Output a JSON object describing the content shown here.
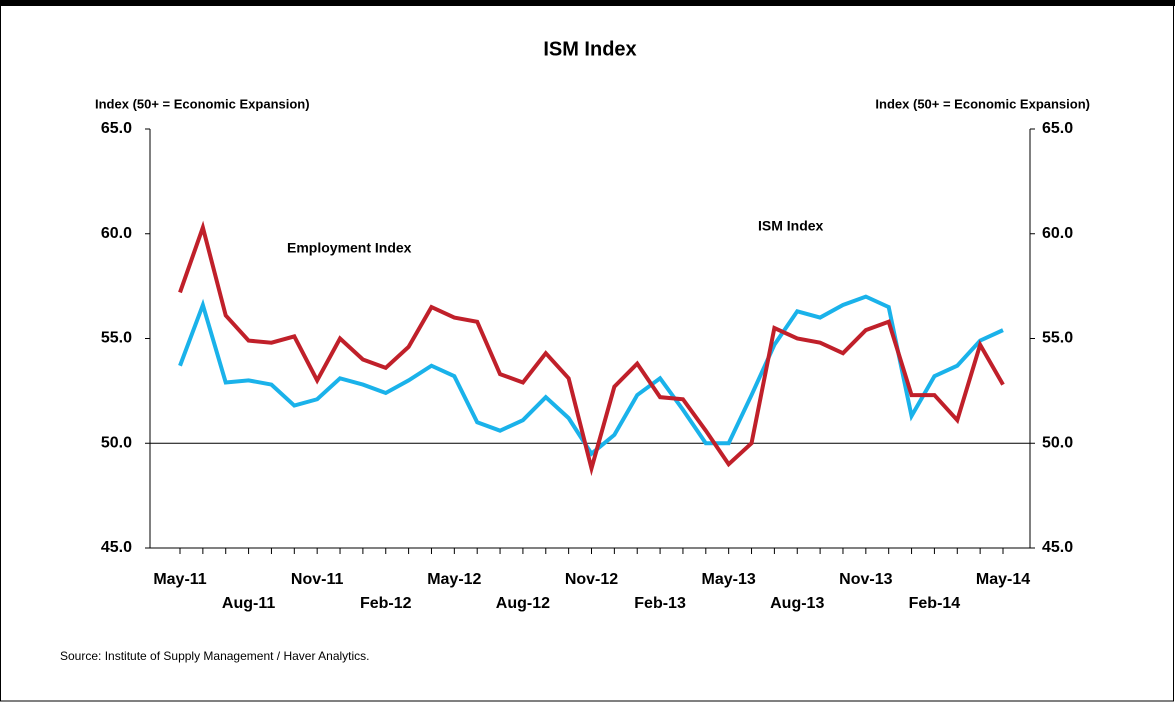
{
  "chart_data": {
    "type": "line",
    "title": "ISM Index",
    "y_label": "Index (50+ = Economic Expansion)",
    "y2_label": "Index (50+ = Economic Expansion)",
    "source": "Source: Institute of Supply Management / Haver Analytics.",
    "categories": [
      "May-11",
      null,
      null,
      "Aug-11",
      null,
      null,
      "Nov-11",
      null,
      null,
      "Feb-12",
      null,
      null,
      "May-12",
      null,
      null,
      "Aug-12",
      null,
      null,
      "Nov-12",
      null,
      null,
      "Feb-13",
      null,
      null,
      "May-13",
      null,
      null,
      "Aug-13",
      null,
      null,
      "Nov-13",
      null,
      null,
      "Feb-14",
      null,
      null,
      "May-14"
    ],
    "series": [
      {
        "name": "ISM Index",
        "color": "#1ab2ea",
        "values": [
          53.7,
          56.6,
          52.9,
          53.0,
          52.8,
          51.8,
          52.1,
          53.1,
          52.8,
          52.4,
          53.0,
          53.7,
          53.2,
          51.0,
          50.6,
          51.1,
          52.2,
          51.2,
          49.5,
          50.4,
          52.3,
          53.1,
          51.6,
          50.0,
          50.0,
          52.3,
          54.7,
          56.3,
          56.0,
          56.6,
          57.0,
          56.5,
          51.3,
          53.2,
          53.7,
          54.9,
          55.4
        ]
      },
      {
        "name": "Employment Index",
        "color": "#c0202a",
        "values": [
          57.2,
          60.3,
          56.1,
          54.9,
          54.8,
          55.1,
          53.0,
          55.0,
          54.0,
          53.6,
          54.6,
          56.5,
          56.0,
          55.8,
          53.3,
          52.9,
          54.3,
          53.1,
          48.8,
          52.7,
          53.8,
          52.2,
          52.1,
          50.6,
          49.0,
          50.0,
          55.5,
          55.0,
          54.8,
          54.3,
          55.4,
          55.8,
          52.3,
          52.3,
          51.1,
          54.7,
          52.8
        ]
      }
    ],
    "ylim": [
      45,
      65
    ],
    "yticks": [
      {
        "value": 45,
        "label": "45.0"
      },
      {
        "value": 50,
        "label": "50.0"
      },
      {
        "value": 55,
        "label": "55.0"
      },
      {
        "value": 60,
        "label": "60.0"
      },
      {
        "value": 65,
        "label": "65.0"
      }
    ],
    "y2lim": [
      45,
      65
    ],
    "y2ticks": [
      {
        "value": 45,
        "label": "45.0"
      },
      {
        "value": 50,
        "label": "50.0"
      },
      {
        "value": 55,
        "label": "55.0"
      },
      {
        "value": 60,
        "label": "60.0"
      },
      {
        "value": 65,
        "label": "65.0"
      }
    ],
    "reference_line": 50,
    "grid": false
  }
}
